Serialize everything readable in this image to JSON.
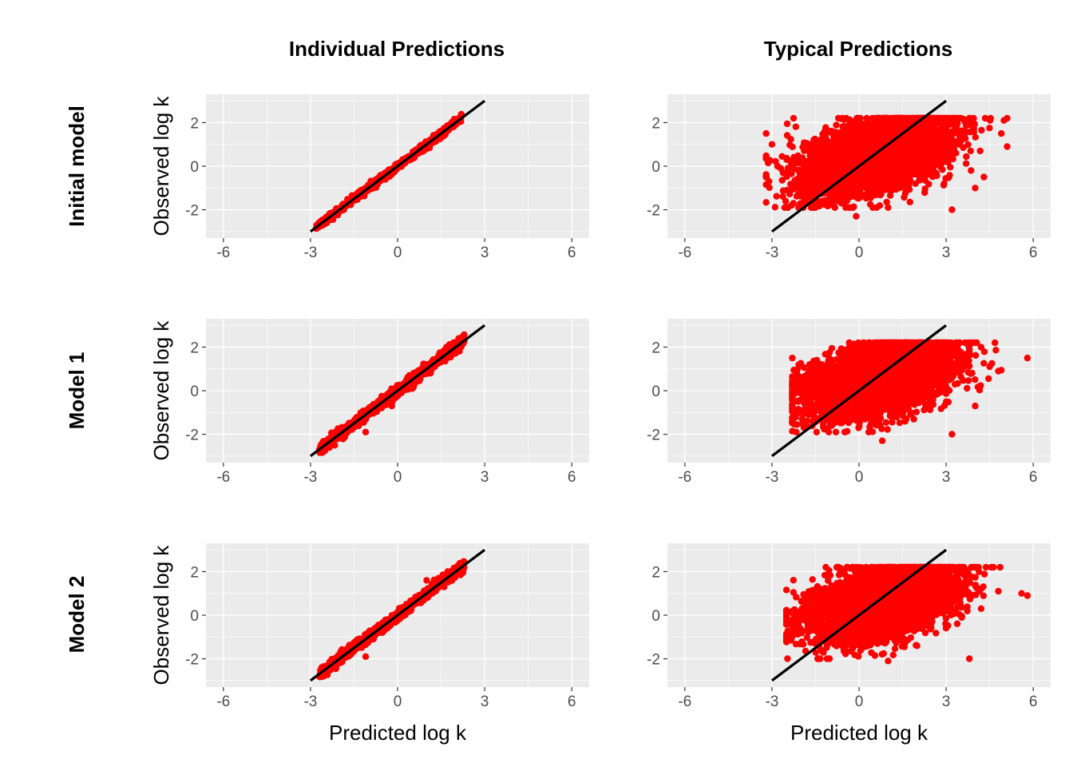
{
  "figure": {
    "column_titles": [
      "Individual Predictions",
      "Typical Predictions"
    ],
    "row_titles": [
      "Initial model",
      "Model 1",
      "Model 2"
    ],
    "x_axis_label": "Predicted log k",
    "y_axis_label": "Observed log k"
  },
  "chart_data": [
    {
      "type": "scatter",
      "panel": "Initial model / Individual Predictions",
      "xlabel": "",
      "ylabel": "Observed log k",
      "xlim": [
        -6.6,
        6.6
      ],
      "ylim": [
        -3.3,
        3.3
      ],
      "xticks": [
        -6,
        -3,
        0,
        3,
        6
      ],
      "yticks": [
        -2,
        0,
        2
      ],
      "point_color": "#ff0000",
      "line_color": "#000000",
      "reference_line": {
        "x": [
          -3,
          3
        ],
        "y": [
          -3,
          3
        ]
      },
      "scatter": {
        "kind": "tight",
        "x_range": [
          -2.8,
          2.2
        ],
        "spread": 0.08,
        "outliers": [],
        "count": 900
      }
    },
    {
      "type": "scatter",
      "panel": "Initial model / Typical Predictions",
      "xlabel": "",
      "ylabel": "",
      "xlim": [
        -6.6,
        6.6
      ],
      "ylim": [
        -3.3,
        3.3
      ],
      "xticks": [
        -6,
        -3,
        0,
        3,
        6
      ],
      "yticks": [
        -2,
        0,
        2
      ],
      "point_color": "#ff0000",
      "line_color": "#000000",
      "reference_line": {
        "x": [
          -3,
          3
        ],
        "y": [
          -3,
          3
        ]
      },
      "scatter": {
        "kind": "cloud",
        "center_x": 0.6,
        "sd_x": 1.2,
        "x_min": -3.2,
        "x_max": 5.1,
        "y_slope": 0.3,
        "y_intercept": 0.3,
        "sd_y": 0.75,
        "y_min": -1.9,
        "y_max": 2.2,
        "outliers": [
          [
            -3.2,
            1.5
          ],
          [
            -3.0,
            1.0
          ],
          [
            -3.1,
            -0.7
          ],
          [
            4.9,
            1.5
          ],
          [
            5.1,
            0.9
          ],
          [
            4.0,
            -1.0
          ],
          [
            3.2,
            -2.0
          ],
          [
            -0.1,
            -2.3
          ],
          [
            4.3,
            -0.5
          ]
        ],
        "count": 5000
      }
    },
    {
      "type": "scatter",
      "panel": "Model 1 / Individual Predictions",
      "xlabel": "",
      "ylabel": "Observed log k",
      "xlim": [
        -6.6,
        6.6
      ],
      "ylim": [
        -3.3,
        3.3
      ],
      "xticks": [
        -6,
        -3,
        0,
        3,
        6
      ],
      "yticks": [
        -2,
        0,
        2
      ],
      "point_color": "#ff0000",
      "line_color": "#000000",
      "reference_line": {
        "x": [
          -3,
          3
        ],
        "y": [
          -3,
          3
        ]
      },
      "scatter": {
        "kind": "tight",
        "x_range": [
          -2.7,
          2.3
        ],
        "spread": 0.12,
        "outliers": [
          [
            -1.1,
            -1.9
          ],
          [
            1.7,
            1.5
          ],
          [
            -0.2,
            -0.7
          ],
          [
            0.5,
            0.1
          ]
        ],
        "count": 900
      }
    },
    {
      "type": "scatter",
      "panel": "Model 1 / Typical Predictions",
      "xlabel": "",
      "ylabel": "",
      "xlim": [
        -6.6,
        6.6
      ],
      "ylim": [
        -3.3,
        3.3
      ],
      "xticks": [
        -6,
        -3,
        0,
        3,
        6
      ],
      "yticks": [
        -2,
        0,
        2
      ],
      "point_color": "#ff0000",
      "line_color": "#000000",
      "reference_line": {
        "x": [
          -3,
          3
        ],
        "y": [
          -3,
          3
        ]
      },
      "scatter": {
        "kind": "cloud",
        "center_x": 0.7,
        "sd_x": 1.2,
        "x_min": -2.3,
        "x_max": 4.9,
        "y_slope": 0.3,
        "y_intercept": 0.3,
        "sd_y": 0.75,
        "y_min": -1.9,
        "y_max": 2.2,
        "outliers": [
          [
            5.8,
            1.5
          ],
          [
            4.8,
            0.9
          ],
          [
            3.2,
            -2.0
          ],
          [
            -2.3,
            1.5
          ],
          [
            -2.2,
            0.5
          ],
          [
            4.0,
            -0.7
          ],
          [
            0.8,
            -2.3
          ],
          [
            4.5,
            1.1
          ]
        ],
        "count": 5000
      }
    },
    {
      "type": "scatter",
      "panel": "Model 2 / Individual Predictions",
      "xlabel": "Predicted log k",
      "ylabel": "Observed log k",
      "xlim": [
        -6.6,
        6.6
      ],
      "ylim": [
        -3.3,
        3.3
      ],
      "xticks": [
        -6,
        -3,
        0,
        3,
        6
      ],
      "yticks": [
        -2,
        0,
        2
      ],
      "point_color": "#ff0000",
      "line_color": "#000000",
      "reference_line": {
        "x": [
          -3,
          3
        ],
        "y": [
          -3,
          3
        ]
      },
      "scatter": {
        "kind": "tight",
        "x_range": [
          -2.7,
          2.3
        ],
        "spread": 0.12,
        "outliers": [
          [
            -1.1,
            -1.9
          ],
          [
            -0.3,
            -0.5
          ],
          [
            1.0,
            1.6
          ],
          [
            -0.2,
            -0.2
          ]
        ],
        "count": 900
      }
    },
    {
      "type": "scatter",
      "panel": "Model 2 / Typical Predictions",
      "xlabel": "Predicted log k",
      "ylabel": "",
      "xlim": [
        -6.6,
        6.6
      ],
      "ylim": [
        -3.3,
        3.3
      ],
      "xticks": [
        -6,
        -3,
        0,
        3,
        6
      ],
      "yticks": [
        -2,
        0,
        2
      ],
      "point_color": "#ff0000",
      "line_color": "#000000",
      "reference_line": {
        "x": [
          -3,
          3
        ],
        "y": [
          -3,
          3
        ]
      },
      "scatter": {
        "kind": "cloud",
        "center_x": 0.8,
        "sd_x": 1.2,
        "x_min": -2.5,
        "x_max": 5.0,
        "y_slope": 0.3,
        "y_intercept": 0.3,
        "sd_y": 0.75,
        "y_min": -2.0,
        "y_max": 2.2,
        "outliers": [
          [
            5.6,
            1.0
          ],
          [
            5.8,
            0.9
          ],
          [
            3.8,
            -2.0
          ],
          [
            1.0,
            -2.1
          ],
          [
            -2.3,
            -0.5
          ],
          [
            4.8,
            1.1
          ],
          [
            2.0,
            -1.4
          ]
        ],
        "count": 5000
      }
    }
  ]
}
